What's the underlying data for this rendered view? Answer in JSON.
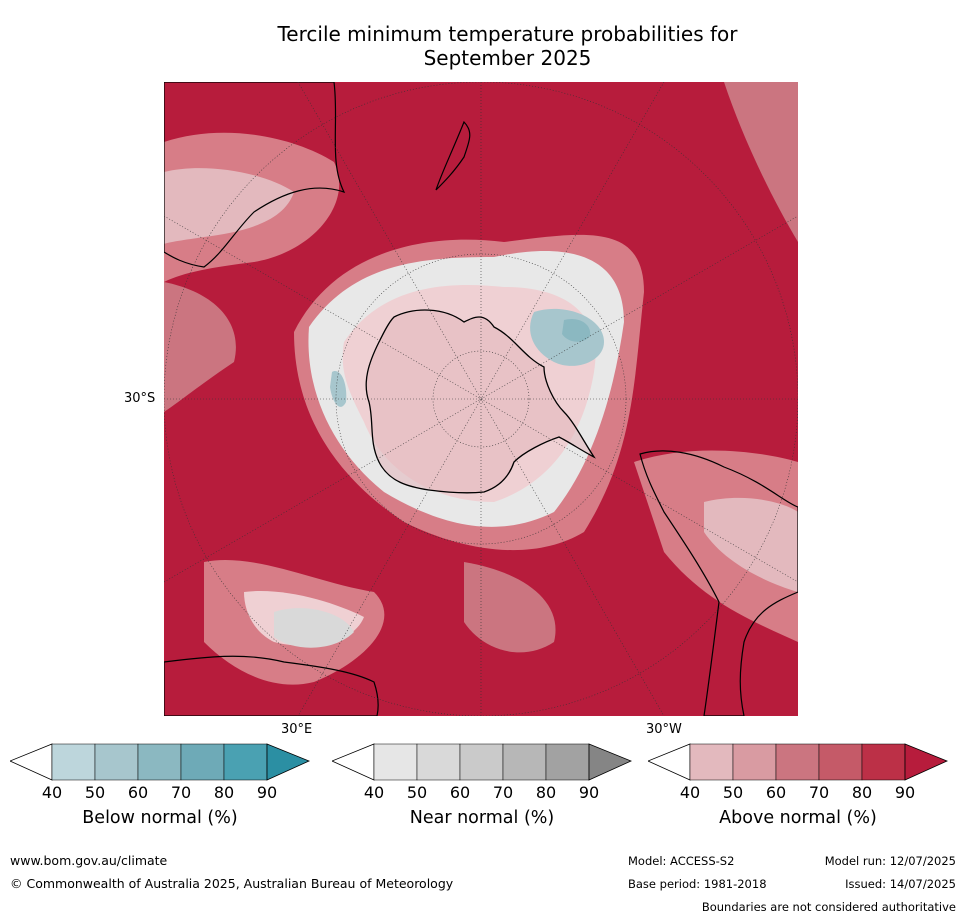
{
  "title_line1": "Tercile minimum temperature probabilities for",
  "title_line2": "September 2025",
  "map": {
    "projection": "south polar stereographic",
    "labels": {
      "lat_30s": "30°S",
      "lon_30e": "30°E",
      "lon_30w": "30°W"
    },
    "colors": {
      "above_dominant": "#b71c3c",
      "above_70": "#c8505f",
      "above_60": "#d77d87",
      "above_50": "#e3a8ae",
      "above_40": "#efd0d3",
      "near_normal": "#e8e8e8",
      "below_50": "#a7c6cd",
      "below_60": "#8bb8c1",
      "land_outline": "#000000"
    }
  },
  "colorbars": [
    {
      "label": "Below normal (%)",
      "ticks": [
        "40",
        "50",
        "60",
        "70",
        "80",
        "90"
      ],
      "colors": [
        "#ffffff",
        "#bdd6dc",
        "#a7c6cd",
        "#8bb8c1",
        "#6eaab7",
        "#4aa1b2",
        "#2b8fa3"
      ]
    },
    {
      "label": "Near normal (%)",
      "ticks": [
        "40",
        "50",
        "60",
        "70",
        "80",
        "90"
      ],
      "colors": [
        "#ffffff",
        "#e6e6e6",
        "#d9d9d9",
        "#cacaca",
        "#b7b7b7",
        "#a2a2a2",
        "#858585"
      ]
    },
    {
      "label": "Above normal (%)",
      "ticks": [
        "40",
        "50",
        "60",
        "70",
        "80",
        "90"
      ],
      "colors": [
        "#ffffff",
        "#e3b9be",
        "#d99ba2",
        "#cb7580",
        "#c55a68",
        "#bc3047",
        "#b71c3c"
      ]
    }
  ],
  "footer": {
    "website": "www.bom.gov.au/climate",
    "copyright": "© Commonwealth of Australia 2025, Australian Bureau of Meteorology",
    "model": "Model: ACCESS-S2",
    "base_period": "Base period: 1981-2018",
    "model_run": "Model run: 12/07/2025",
    "issued": "Issued: 14/07/2025",
    "disclaimer": "Boundaries are not considered authoritative"
  }
}
